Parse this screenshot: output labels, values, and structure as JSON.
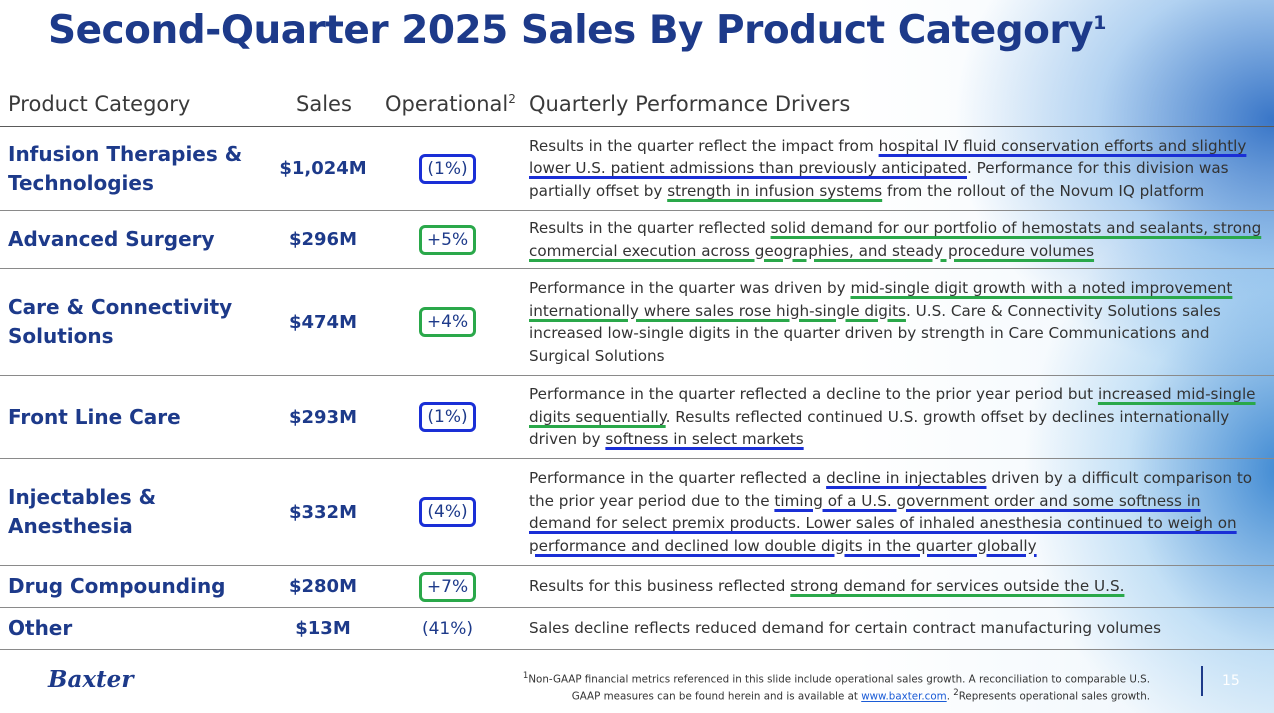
{
  "slide": {
    "title": "Second-Quarter 2025 Sales By Product Category",
    "title_sup": "1"
  },
  "table": {
    "headers": {
      "category": "Product Category",
      "sales": "Sales",
      "operational": "Operational",
      "operational_sup": "2",
      "drivers": "Quarterly Performance Drivers"
    },
    "rows": [
      {
        "category": "Infusion Therapies & Technologies",
        "sales": "$1,024M",
        "operational": "(1%)",
        "box": "blue",
        "drivers": [
          {
            "t": "Results in the quarter reflect the impact from ",
            "u": ""
          },
          {
            "t": "hospital IV fluid conservation efforts and slightly lower U.S. patient admissions than previously anticipated",
            "u": "blue"
          },
          {
            "t": ". Performance for this division was partially offset by ",
            "u": ""
          },
          {
            "t": "strength in infusion systems",
            "u": "green"
          },
          {
            "t": " from the rollout of the Novum IQ platform",
            "u": ""
          }
        ]
      },
      {
        "category": "Advanced Surgery",
        "sales": "$296M",
        "operational": "+5%",
        "box": "green",
        "drivers": [
          {
            "t": "Results in the quarter reflected ",
            "u": ""
          },
          {
            "t": "solid demand for our portfolio of hemostats and sealants, strong commercial execution across geographies, and steady procedure volumes",
            "u": "green"
          }
        ]
      },
      {
        "category": "Care & Connectivity Solutions",
        "sales": "$474M",
        "operational": "+4%",
        "box": "green",
        "drivers": [
          {
            "t": "Performance in the quarter was driven by ",
            "u": ""
          },
          {
            "t": "mid-single digit growth with a noted improvement internationally where sales rose high-single digits",
            "u": "green"
          },
          {
            "t": ". U.S. Care & Connectivity Solutions sales increased low-single digits in the quarter driven by strength in Care Communications and Surgical Solutions",
            "u": ""
          }
        ]
      },
      {
        "category": "Front Line Care",
        "sales": "$293M",
        "operational": "(1%)",
        "box": "blue",
        "drivers": [
          {
            "t": "Performance in the quarter reflected a decline to the prior year period but ",
            "u": ""
          },
          {
            "t": "increased mid-single digits sequentially",
            "u": "green"
          },
          {
            "t": ". Results reflected continued U.S. growth offset by declines internationally driven by ",
            "u": ""
          },
          {
            "t": "softness in select markets",
            "u": "blue"
          }
        ]
      },
      {
        "category": "Injectables & Anesthesia",
        "sales": "$332M",
        "operational": "(4%)",
        "box": "blue",
        "drivers": [
          {
            "t": "Performance in the quarter reflected a ",
            "u": ""
          },
          {
            "t": "decline in injectables",
            "u": "blue"
          },
          {
            "t": " driven by a difficult comparison to the prior year period due to the ",
            "u": ""
          },
          {
            "t": "timing of a U.S. government order and some softness in demand for select premix products. Lower sales of inhaled anesthesia continued to weigh on performance and declined low double digits in the quarter globally",
            "u": "blue"
          }
        ]
      },
      {
        "category": "Drug Compounding",
        "sales": "$280M",
        "operational": "+7%",
        "box": "green",
        "drivers": [
          {
            "t": "Results for this business reflected ",
            "u": ""
          },
          {
            "t": "strong demand for services outside the U.S.",
            "u": "green"
          }
        ]
      },
      {
        "category": "Other",
        "sales": "$13M",
        "operational": "(41%)",
        "box": "",
        "drivers": [
          {
            "t": "Sales decline reflects reduced demand for certain contract manufacturing volumes",
            "u": ""
          }
        ]
      }
    ]
  },
  "footer": {
    "logo": "Baxter",
    "footnote_1_sup": "1",
    "footnote_1": "Non-GAAP financial metrics referenced in this slide include operational sales growth. A reconciliation to comparable U.S. GAAP measures can be found herein and is available at ",
    "footnote_link": "www.baxter.com",
    "footnote_mid": ". ",
    "footnote_2_sup": "2",
    "footnote_2": "Represents operational sales growth.",
    "page_number": "15"
  },
  "colors": {
    "title": "#1d3a8a",
    "highlight_blue": "#1a2fd6",
    "highlight_green": "#2aa84a"
  }
}
